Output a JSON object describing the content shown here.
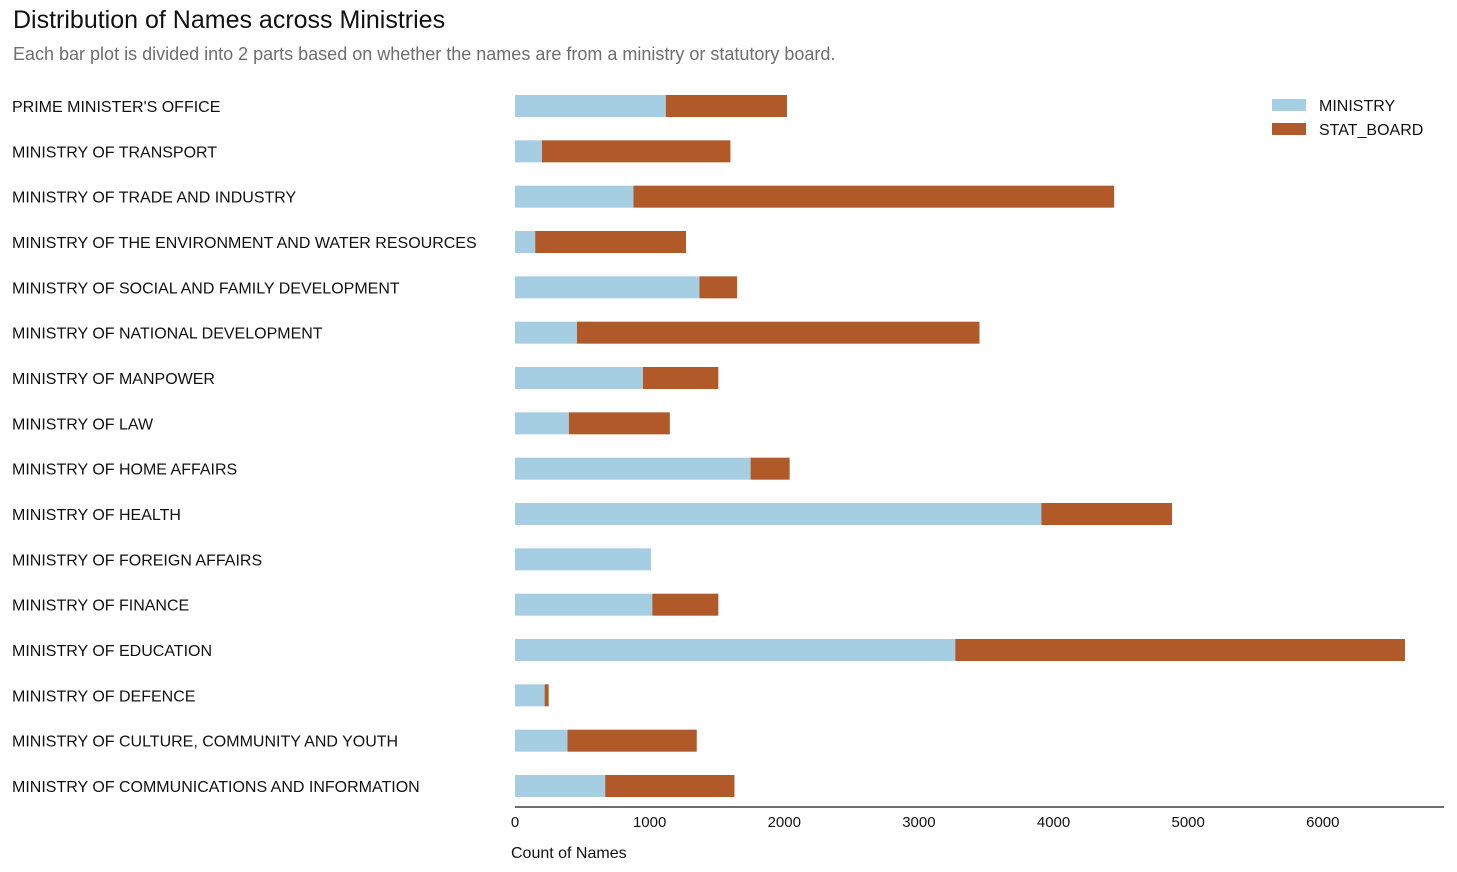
{
  "chart_data": {
    "type": "bar",
    "stacked": true,
    "orientation": "horizontal",
    "title": "Distribution of Names across Ministries",
    "subtitle": "Each bar plot is divided into 2 parts based on whether the names are from a ministry or statutory board.",
    "xlabel": "Count of Names",
    "ylabel": "",
    "xlim": [
      0,
      6900
    ],
    "xticks": [
      0,
      1000,
      2000,
      3000,
      4000,
      5000,
      6000
    ],
    "grid": false,
    "legend_position": "top-right",
    "categories": [
      "PRIME MINISTER'S OFFICE",
      "MINISTRY OF TRANSPORT",
      "MINISTRY OF TRADE AND INDUSTRY",
      "MINISTRY OF THE ENVIRONMENT AND WATER RESOURCES",
      "MINISTRY OF SOCIAL AND FAMILY DEVELOPMENT",
      "MINISTRY OF NATIONAL DEVELOPMENT",
      "MINISTRY OF MANPOWER",
      "MINISTRY OF LAW",
      "MINISTRY OF HOME AFFAIRS",
      "MINISTRY OF HEALTH",
      "MINISTRY OF FOREIGN AFFAIRS",
      "MINISTRY OF FINANCE",
      "MINISTRY OF EDUCATION",
      "MINISTRY OF DEFENCE",
      "MINISTRY OF CULTURE, COMMUNITY AND YOUTH",
      "MINISTRY OF COMMUNICATIONS AND INFORMATION"
    ],
    "series": [
      {
        "name": "MINISTRY",
        "color": "#a6cee3",
        "values": [
          1120,
          200,
          880,
          150,
          1370,
          460,
          950,
          400,
          1750,
          3910,
          1010,
          1020,
          3270,
          220,
          390,
          670
        ]
      },
      {
        "name": "STAT_BOARD",
        "color": "#b15928",
        "values": [
          900,
          1400,
          3570,
          1120,
          280,
          2990,
          560,
          750,
          290,
          970,
          0,
          490,
          3340,
          30,
          960,
          960
        ]
      }
    ]
  }
}
